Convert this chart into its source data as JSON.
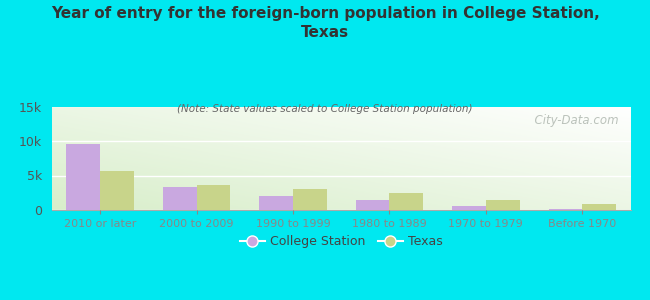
{
  "title": "Year of entry for the foreign-born population in College Station,\nTexas",
  "subtitle": "(Note: State values scaled to College Station population)",
  "categories": [
    "2010 or later",
    "2000 to 2009",
    "1990 to 1999",
    "1980 to 1989",
    "1970 to 1979",
    "Before 1970"
  ],
  "college_station_values": [
    9600,
    3300,
    2000,
    1400,
    600,
    200
  ],
  "texas_values": [
    5600,
    3600,
    3000,
    2400,
    1400,
    900
  ],
  "college_station_color": "#c9a8e0",
  "texas_color": "#c8d48a",
  "background_color": "#00e8f0",
  "ylim": [
    0,
    15000
  ],
  "yticks": [
    0,
    5000,
    10000,
    15000
  ],
  "ytick_labels": [
    "0",
    "5k",
    "10k",
    "15k"
  ],
  "bar_width": 0.35,
  "watermark": "  City-Data.com",
  "legend_labels": [
    "College Station",
    "Texas"
  ]
}
